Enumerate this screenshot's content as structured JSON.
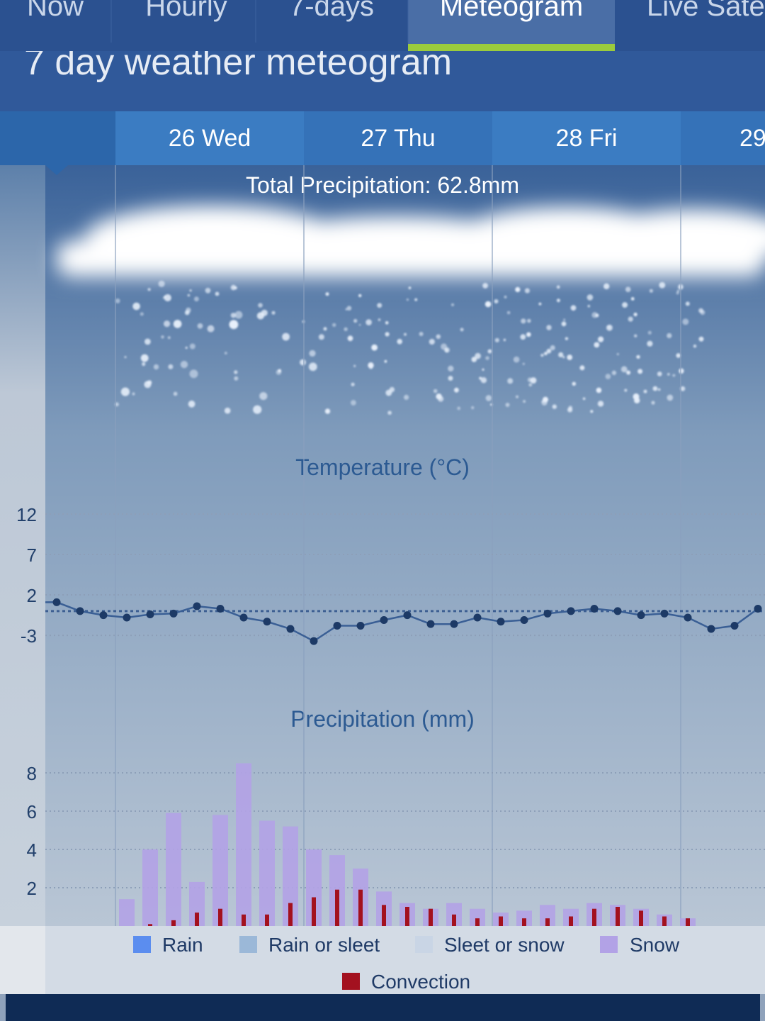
{
  "tabs": [
    "Now",
    "Hourly",
    "7-days",
    "Meteogram",
    "Live Sate"
  ],
  "page_title": "7 day weather meteogram",
  "days": [
    "26 Wed",
    "27 Thu",
    "28 Fri",
    "29"
  ],
  "total_precipitation": "Total Precipitation: 62.8mm",
  "chart_data": [
    {
      "type": "line",
      "title": "Temperature (°C)",
      "color": "#1d3a66",
      "values": [
        1.1,
        0,
        -0.5,
        -0.8,
        -0.4,
        -0.3,
        0.6,
        0.3,
        -0.8,
        -1.3,
        -2.2,
        -3.7,
        -1.8,
        -1.8,
        -1.1,
        -0.5,
        -1.6,
        -1.6,
        -0.8,
        -1.3,
        -1.1,
        -0.3,
        0,
        0.3,
        0,
        -0.5,
        -0.3,
        -0.8,
        -2.2,
        -1.8,
        0.3
      ],
      "ylim": [
        -5,
        14
      ],
      "yticks": [
        -3,
        2,
        7,
        12
      ],
      "grid": true
    },
    {
      "type": "bar",
      "title": "Precipitation (mm)",
      "ylim": [
        0,
        9
      ],
      "yticks": [
        2,
        4,
        6,
        8
      ],
      "grid": true,
      "series": [
        {
          "name": "Rain",
          "color": "#5b8def",
          "values": [
            0,
            0,
            0,
            0,
            0,
            0,
            0,
            0,
            0,
            0,
            0,
            0,
            0,
            0,
            0,
            0,
            0,
            0,
            0,
            0,
            0,
            0,
            0,
            0,
            0
          ]
        },
        {
          "name": "Rain or sleet",
          "color": "#9bb8d8",
          "values": [
            0,
            0,
            0,
            0,
            0,
            0,
            0,
            0,
            0,
            0,
            0,
            0,
            0,
            0,
            0,
            0,
            0,
            0,
            0,
            0,
            0,
            0,
            0,
            0,
            0
          ]
        },
        {
          "name": "Sleet or snow",
          "color": "#c9d5e5",
          "values": [
            0,
            0,
            0,
            0,
            0,
            0,
            0,
            0,
            0,
            0,
            0,
            0,
            0,
            0,
            0,
            0,
            0,
            0,
            0,
            0,
            0,
            0,
            0,
            0,
            0
          ]
        },
        {
          "name": "Snow",
          "color": "#b2a2e6",
          "values": [
            1.4,
            4.0,
            5.9,
            2.3,
            5.8,
            8.5,
            5.5,
            5.2,
            4.0,
            3.7,
            3.0,
            1.8,
            1.2,
            0.9,
            1.2,
            0.9,
            0.7,
            0.8,
            1.1,
            0.9,
            1.2,
            1.1,
            0.9,
            0.6,
            0.4
          ]
        },
        {
          "name": "Convection",
          "color": "#a3111f",
          "values": [
            0,
            0.1,
            0.3,
            0.7,
            0.9,
            0.6,
            0.6,
            1.2,
            1.5,
            1.9,
            1.9,
            1.1,
            1.0,
            0.9,
            0.6,
            0.4,
            0.5,
            0.4,
            0.4,
            0.5,
            0.9,
            1.0,
            0.8,
            0.5,
            0.4
          ]
        }
      ]
    }
  ]
}
